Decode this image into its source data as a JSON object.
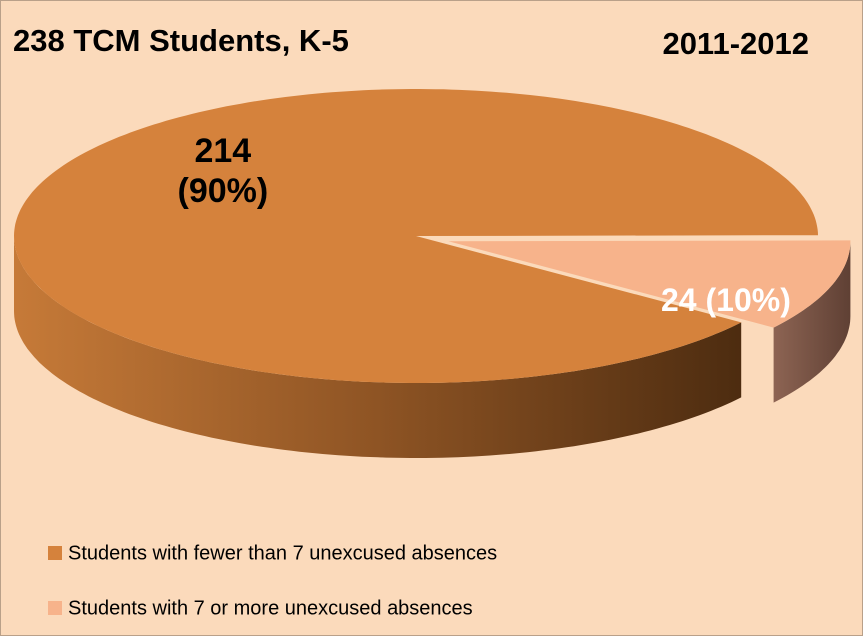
{
  "chart_data": {
    "type": "pie3d",
    "title": "238 TCM Students, K-5",
    "subtitle": "2011-2012",
    "categories": [
      "Students with fewer than 7 unexcused absences",
      "Students with 7 or more unexcused absences"
    ],
    "values": [
      214,
      24
    ],
    "value_labels": [
      "214\n(90%)",
      "24 (10%)"
    ],
    "colors": [
      "#d5823c",
      "#f7b38b"
    ],
    "side_colors": [
      "#6e4119",
      "#7d5646"
    ],
    "legend": "bottom-left"
  }
}
